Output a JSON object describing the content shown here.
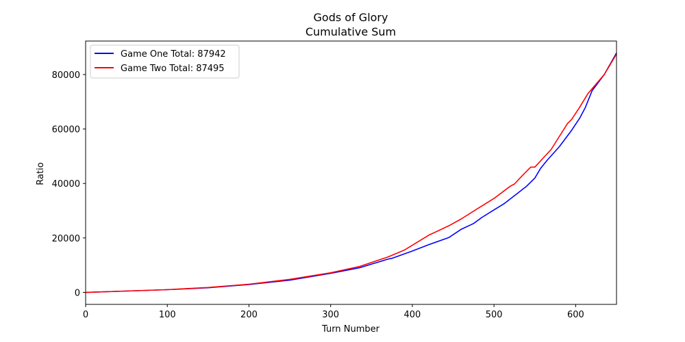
{
  "chart_data": {
    "type": "line",
    "title": "Gods of Glory",
    "subtitle": "Cumulative Sum",
    "xlabel": "Turn Number",
    "ylabel": "Ratio",
    "xlim": [
      0,
      650
    ],
    "ylim": [
      -4400,
      92300
    ],
    "xticks": [
      0,
      100,
      200,
      300,
      400,
      500,
      600
    ],
    "yticks": [
      0,
      20000,
      40000,
      60000,
      80000
    ],
    "legend_position": "top-left",
    "grid": false,
    "series": [
      {
        "name": "Game One Total: 87942",
        "color": "#0000ff",
        "points": [
          [
            0,
            0
          ],
          [
            50,
            500
          ],
          [
            100,
            1000
          ],
          [
            150,
            1700
          ],
          [
            200,
            2900
          ],
          [
            250,
            4500
          ],
          [
            300,
            7000
          ],
          [
            335,
            9000
          ],
          [
            370,
            12200
          ],
          [
            375,
            12500
          ],
          [
            400,
            15200
          ],
          [
            420,
            17500
          ],
          [
            445,
            20200
          ],
          [
            460,
            23200
          ],
          [
            475,
            25300
          ],
          [
            485,
            27500
          ],
          [
            500,
            30300
          ],
          [
            512,
            32500
          ],
          [
            525,
            35500
          ],
          [
            540,
            39000
          ],
          [
            550,
            42000
          ],
          [
            557,
            45500
          ],
          [
            565,
            48500
          ],
          [
            580,
            53500
          ],
          [
            595,
            59500
          ],
          [
            605,
            64000
          ],
          [
            612,
            68000
          ],
          [
            620,
            74000
          ],
          [
            635,
            80000
          ],
          [
            650,
            87942
          ]
        ]
      },
      {
        "name": "Game Two Total: 87495",
        "color": "#ff0000",
        "points": [
          [
            0,
            0
          ],
          [
            50,
            500
          ],
          [
            100,
            1000
          ],
          [
            150,
            1800
          ],
          [
            200,
            3000
          ],
          [
            250,
            4800
          ],
          [
            300,
            7200
          ],
          [
            335,
            9500
          ],
          [
            370,
            13000
          ],
          [
            390,
            15500
          ],
          [
            420,
            21000
          ],
          [
            445,
            24500
          ],
          [
            460,
            27000
          ],
          [
            480,
            30800
          ],
          [
            500,
            34500
          ],
          [
            520,
            39000
          ],
          [
            525,
            39800
          ],
          [
            535,
            43000
          ],
          [
            545,
            46000
          ],
          [
            550,
            46000
          ],
          [
            570,
            52500
          ],
          [
            590,
            62000
          ],
          [
            595,
            63500
          ],
          [
            605,
            68000
          ],
          [
            615,
            73000
          ],
          [
            635,
            80000
          ],
          [
            650,
            87495
          ]
        ]
      }
    ]
  }
}
